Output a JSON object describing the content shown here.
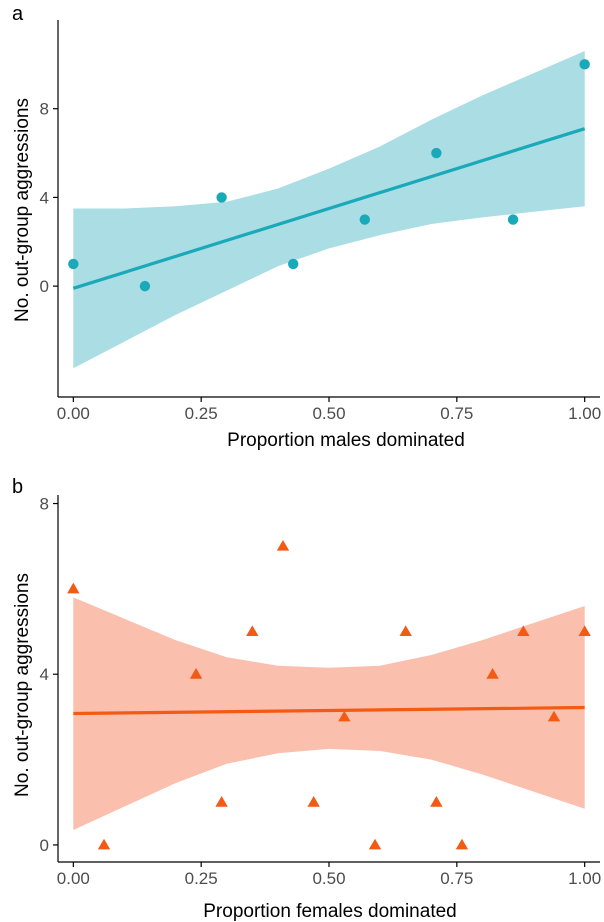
{
  "chart_data": [
    {
      "type": "scatter",
      "panel_label": "a",
      "xlabel": "Proportion males dominated",
      "ylabel": "No. out-group aggressions",
      "xlim": [
        -0.03,
        1.03
      ],
      "ylim": [
        -5,
        12
      ],
      "xticks": [
        0,
        0.25,
        0.5,
        0.75,
        1
      ],
      "xtick_labels": [
        "0.00",
        "0.25",
        "0.50",
        "0.75",
        "1.00"
      ],
      "yticks": [
        0,
        4,
        8
      ],
      "ytick_labels": [
        "0",
        "4",
        "8"
      ],
      "grid": false,
      "marker": "circle",
      "colors": {
        "point": "#1aa9b8",
        "line": "#1aa9b8",
        "band": "#abdde4"
      },
      "points": [
        {
          "x": 0.0,
          "y": 1
        },
        {
          "x": 0.14,
          "y": 0
        },
        {
          "x": 0.29,
          "y": 4
        },
        {
          "x": 0.43,
          "y": 1
        },
        {
          "x": 0.57,
          "y": 3
        },
        {
          "x": 0.71,
          "y": 6
        },
        {
          "x": 0.86,
          "y": 3
        },
        {
          "x": 1.0,
          "y": 10
        }
      ],
      "fit": {
        "x": [
          0,
          1
        ],
        "y": [
          -0.1,
          7.1
        ]
      },
      "ci_band": {
        "x": [
          0,
          0.1,
          0.2,
          0.3,
          0.4,
          0.5,
          0.6,
          0.7,
          0.8,
          0.9,
          1.0
        ],
        "lower": [
          -3.7,
          -2.5,
          -1.3,
          -0.2,
          0.9,
          1.7,
          2.3,
          2.8,
          3.1,
          3.35,
          3.6
        ],
        "upper": [
          3.5,
          3.5,
          3.6,
          3.8,
          4.4,
          5.3,
          6.3,
          7.5,
          8.6,
          9.6,
          10.6
        ]
      }
    },
    {
      "type": "scatter",
      "panel_label": "b",
      "xlabel": "Proportion females dominated",
      "ylabel": "No. out-group aggressions",
      "xlim": [
        -0.03,
        1.03
      ],
      "ylim": [
        -0.4,
        8.2
      ],
      "xticks": [
        0,
        0.25,
        0.5,
        0.75,
        1
      ],
      "xtick_labels": [
        "0.00",
        "0.25",
        "0.50",
        "0.75",
        "1.00"
      ],
      "yticks": [
        0,
        4,
        8
      ],
      "ytick_labels": [
        "0",
        "4",
        "8"
      ],
      "grid": false,
      "marker": "triangle",
      "colors": {
        "point": "#f35a14",
        "line": "#f35a14",
        "band": "#fbbfae"
      },
      "points": [
        {
          "x": 0.0,
          "y": 6
        },
        {
          "x": 0.06,
          "y": 0
        },
        {
          "x": 0.24,
          "y": 4
        },
        {
          "x": 0.29,
          "y": 1
        },
        {
          "x": 0.35,
          "y": 5
        },
        {
          "x": 0.41,
          "y": 7
        },
        {
          "x": 0.47,
          "y": 1
        },
        {
          "x": 0.53,
          "y": 3
        },
        {
          "x": 0.59,
          "y": 0
        },
        {
          "x": 0.65,
          "y": 5
        },
        {
          "x": 0.71,
          "y": 1
        },
        {
          "x": 0.76,
          "y": 0
        },
        {
          "x": 0.82,
          "y": 4
        },
        {
          "x": 0.88,
          "y": 5
        },
        {
          "x": 0.94,
          "y": 3
        },
        {
          "x": 1.0,
          "y": 5
        }
      ],
      "fit": {
        "x": [
          0,
          1
        ],
        "y": [
          3.08,
          3.22
        ]
      },
      "ci_band": {
        "x": [
          0,
          0.1,
          0.2,
          0.3,
          0.4,
          0.5,
          0.6,
          0.7,
          0.8,
          0.9,
          1.0
        ],
        "lower": [
          0.35,
          0.9,
          1.45,
          1.9,
          2.15,
          2.25,
          2.2,
          2.0,
          1.65,
          1.25,
          0.85
        ],
        "upper": [
          5.8,
          5.3,
          4.8,
          4.4,
          4.2,
          4.15,
          4.2,
          4.45,
          4.8,
          5.2,
          5.6
        ]
      }
    }
  ]
}
